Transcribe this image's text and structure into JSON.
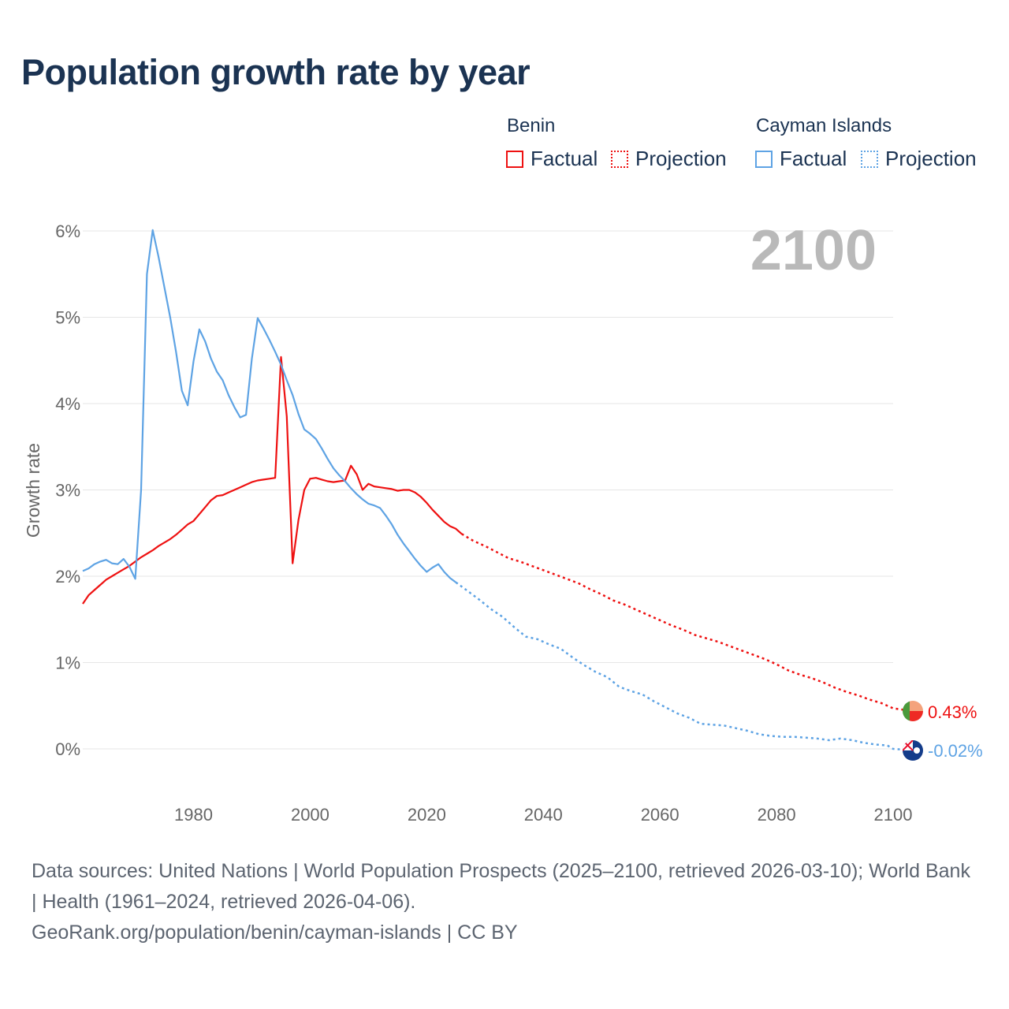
{
  "title": "Population growth rate by year",
  "legend": {
    "groups": [
      {
        "name": "Benin",
        "factual": "Factual",
        "projection": "Projection",
        "color": "#ee1111"
      },
      {
        "name": "Cayman Islands",
        "factual": "Factual",
        "projection": "Projection",
        "color": "#5ea3e4"
      }
    ]
  },
  "year_label": "2100",
  "chart_data": {
    "type": "line",
    "title": "Population growth rate by year",
    "xlabel": "",
    "ylabel": "Growth rate",
    "xlim": [
      1961,
      2100
    ],
    "ylim": [
      -0.5,
      6
    ],
    "x_ticks": [
      1980,
      2000,
      2020,
      2040,
      2060,
      2080,
      2100
    ],
    "x_tick_labels": [
      "1980",
      "2000",
      "2020",
      "2040",
      "2060",
      "2080",
      "2100"
    ],
    "y_ticks": [
      0,
      1,
      2,
      3,
      4,
      5,
      6
    ],
    "y_tick_labels": [
      "0%",
      "1%",
      "2%",
      "3%",
      "4%",
      "5%",
      "6%"
    ],
    "grid": true,
    "series": [
      {
        "name": "Benin",
        "color": "#ee1111",
        "factual": [
          [
            1961,
            1.68
          ],
          [
            1962,
            1.78
          ],
          [
            1963,
            1.84
          ],
          [
            1964,
            1.9
          ],
          [
            1965,
            1.96
          ],
          [
            1966,
            2.0
          ],
          [
            1967,
            2.04
          ],
          [
            1968,
            2.08
          ],
          [
            1969,
            2.12
          ],
          [
            1970,
            2.17
          ],
          [
            1971,
            2.22
          ],
          [
            1972,
            2.26
          ],
          [
            1973,
            2.3
          ],
          [
            1974,
            2.35
          ],
          [
            1975,
            2.39
          ],
          [
            1976,
            2.43
          ],
          [
            1977,
            2.48
          ],
          [
            1978,
            2.54
          ],
          [
            1979,
            2.6
          ],
          [
            1980,
            2.64
          ],
          [
            1981,
            2.72
          ],
          [
            1982,
            2.8
          ],
          [
            1983,
            2.88
          ],
          [
            1984,
            2.93
          ],
          [
            1985,
            2.94
          ],
          [
            1986,
            2.97
          ],
          [
            1987,
            3.0
          ],
          [
            1988,
            3.03
          ],
          [
            1989,
            3.06
          ],
          [
            1990,
            3.09
          ],
          [
            1991,
            3.11
          ],
          [
            1992,
            3.12
          ],
          [
            1993,
            3.13
          ],
          [
            1994,
            3.14
          ],
          [
            1995,
            4.54
          ],
          [
            1996,
            3.85
          ],
          [
            1997,
            2.15
          ],
          [
            1998,
            2.65
          ],
          [
            1999,
            3.0
          ],
          [
            2000,
            3.13
          ],
          [
            2001,
            3.14
          ],
          [
            2002,
            3.12
          ],
          [
            2003,
            3.1
          ],
          [
            2004,
            3.09
          ],
          [
            2005,
            3.1
          ],
          [
            2006,
            3.11
          ],
          [
            2007,
            3.28
          ],
          [
            2008,
            3.18
          ],
          [
            2009,
            3.0
          ],
          [
            2010,
            3.07
          ],
          [
            2011,
            3.04
          ],
          [
            2012,
            3.03
          ],
          [
            2013,
            3.02
          ],
          [
            2014,
            3.01
          ],
          [
            2015,
            2.99
          ],
          [
            2016,
            3.0
          ],
          [
            2017,
            3.0
          ],
          [
            2018,
            2.97
          ],
          [
            2019,
            2.92
          ],
          [
            2020,
            2.85
          ],
          [
            2021,
            2.77
          ],
          [
            2022,
            2.7
          ],
          [
            2023,
            2.63
          ],
          [
            2024,
            2.58
          ],
          [
            2025,
            2.55
          ],
          [
            2026,
            2.49
          ]
        ],
        "projection": [
          [
            2026,
            2.49
          ],
          [
            2028,
            2.41
          ],
          [
            2030,
            2.35
          ],
          [
            2032,
            2.28
          ],
          [
            2034,
            2.21
          ],
          [
            2036,
            2.17
          ],
          [
            2038,
            2.12
          ],
          [
            2040,
            2.07
          ],
          [
            2042,
            2.02
          ],
          [
            2044,
            1.97
          ],
          [
            2046,
            1.92
          ],
          [
            2048,
            1.85
          ],
          [
            2050,
            1.79
          ],
          [
            2052,
            1.72
          ],
          [
            2054,
            1.67
          ],
          [
            2056,
            1.61
          ],
          [
            2058,
            1.55
          ],
          [
            2060,
            1.49
          ],
          [
            2062,
            1.43
          ],
          [
            2064,
            1.38
          ],
          [
            2066,
            1.32
          ],
          [
            2068,
            1.28
          ],
          [
            2070,
            1.24
          ],
          [
            2072,
            1.19
          ],
          [
            2074,
            1.14
          ],
          [
            2076,
            1.09
          ],
          [
            2078,
            1.04
          ],
          [
            2080,
            0.98
          ],
          [
            2082,
            0.91
          ],
          [
            2084,
            0.86
          ],
          [
            2086,
            0.82
          ],
          [
            2088,
            0.77
          ],
          [
            2090,
            0.71
          ],
          [
            2092,
            0.66
          ],
          [
            2094,
            0.62
          ],
          [
            2096,
            0.57
          ],
          [
            2098,
            0.53
          ],
          [
            2100,
            0.47
          ],
          [
            2102,
            0.45
          ],
          [
            2103,
            0.43
          ]
        ],
        "end_label": "0.43%"
      },
      {
        "name": "Cayman Islands",
        "color": "#5ea3e4",
        "factual": [
          [
            1961,
            2.06
          ],
          [
            1962,
            2.09
          ],
          [
            1963,
            2.14
          ],
          [
            1964,
            2.17
          ],
          [
            1965,
            2.19
          ],
          [
            1966,
            2.15
          ],
          [
            1967,
            2.14
          ],
          [
            1968,
            2.2
          ],
          [
            1969,
            2.11
          ],
          [
            1970,
            1.97
          ],
          [
            1971,
            3.0
          ],
          [
            1972,
            5.5
          ],
          [
            1973,
            6.01
          ],
          [
            1974,
            5.7
          ],
          [
            1975,
            5.35
          ],
          [
            1976,
            5.0
          ],
          [
            1977,
            4.6
          ],
          [
            1978,
            4.15
          ],
          [
            1979,
            3.98
          ],
          [
            1980,
            4.49
          ],
          [
            1981,
            4.86
          ],
          [
            1982,
            4.72
          ],
          [
            1983,
            4.52
          ],
          [
            1984,
            4.37
          ],
          [
            1985,
            4.27
          ],
          [
            1986,
            4.1
          ],
          [
            1987,
            3.96
          ],
          [
            1988,
            3.84
          ],
          [
            1989,
            3.87
          ],
          [
            1990,
            4.52
          ],
          [
            1991,
            4.99
          ],
          [
            1992,
            4.87
          ],
          [
            1993,
            4.74
          ],
          [
            1994,
            4.6
          ],
          [
            1995,
            4.45
          ],
          [
            1996,
            4.27
          ],
          [
            1997,
            4.1
          ],
          [
            1998,
            3.88
          ],
          [
            1999,
            3.7
          ],
          [
            2000,
            3.65
          ],
          [
            2001,
            3.59
          ],
          [
            2002,
            3.48
          ],
          [
            2003,
            3.36
          ],
          [
            2004,
            3.25
          ],
          [
            2005,
            3.17
          ],
          [
            2006,
            3.1
          ],
          [
            2007,
            3.02
          ],
          [
            2008,
            2.95
          ],
          [
            2009,
            2.89
          ],
          [
            2010,
            2.84
          ],
          [
            2011,
            2.82
          ],
          [
            2012,
            2.79
          ],
          [
            2013,
            2.7
          ],
          [
            2014,
            2.6
          ],
          [
            2015,
            2.48
          ],
          [
            2016,
            2.38
          ],
          [
            2017,
            2.29
          ],
          [
            2018,
            2.2
          ],
          [
            2019,
            2.12
          ],
          [
            2020,
            2.05
          ],
          [
            2021,
            2.1
          ],
          [
            2022,
            2.14
          ],
          [
            2023,
            2.05
          ],
          [
            2024,
            1.98
          ],
          [
            2025,
            1.93
          ]
        ],
        "projection": [
          [
            2025,
            1.93
          ],
          [
            2027,
            1.83
          ],
          [
            2029,
            1.73
          ],
          [
            2031,
            1.62
          ],
          [
            2033,
            1.53
          ],
          [
            2035,
            1.41
          ],
          [
            2037,
            1.3
          ],
          [
            2039,
            1.27
          ],
          [
            2041,
            1.21
          ],
          [
            2043,
            1.16
          ],
          [
            2045,
            1.06
          ],
          [
            2047,
            0.97
          ],
          [
            2049,
            0.89
          ],
          [
            2051,
            0.83
          ],
          [
            2053,
            0.72
          ],
          [
            2055,
            0.67
          ],
          [
            2057,
            0.63
          ],
          [
            2059,
            0.55
          ],
          [
            2061,
            0.48
          ],
          [
            2063,
            0.41
          ],
          [
            2065,
            0.36
          ],
          [
            2067,
            0.29
          ],
          [
            2069,
            0.28
          ],
          [
            2071,
            0.27
          ],
          [
            2073,
            0.24
          ],
          [
            2075,
            0.21
          ],
          [
            2077,
            0.17
          ],
          [
            2079,
            0.15
          ],
          [
            2081,
            0.14
          ],
          [
            2083,
            0.14
          ],
          [
            2085,
            0.13
          ],
          [
            2087,
            0.12
          ],
          [
            2089,
            0.1
          ],
          [
            2091,
            0.12
          ],
          [
            2093,
            0.1
          ],
          [
            2095,
            0.07
          ],
          [
            2097,
            0.05
          ],
          [
            2099,
            0.04
          ],
          [
            2100,
            0.0
          ],
          [
            2102,
            -0.01
          ],
          [
            2103,
            -0.02
          ]
        ],
        "end_label": "-0.02%"
      }
    ]
  },
  "footer": {
    "sources": "Data sources: United Nations | World Population Prospects (2025–2100, retrieved 2026-03-10); World Bank | Health (1961–2024, retrieved 2026-04-06).",
    "credit": "GeoRank.org/population/benin/cayman-islands | CC BY"
  }
}
